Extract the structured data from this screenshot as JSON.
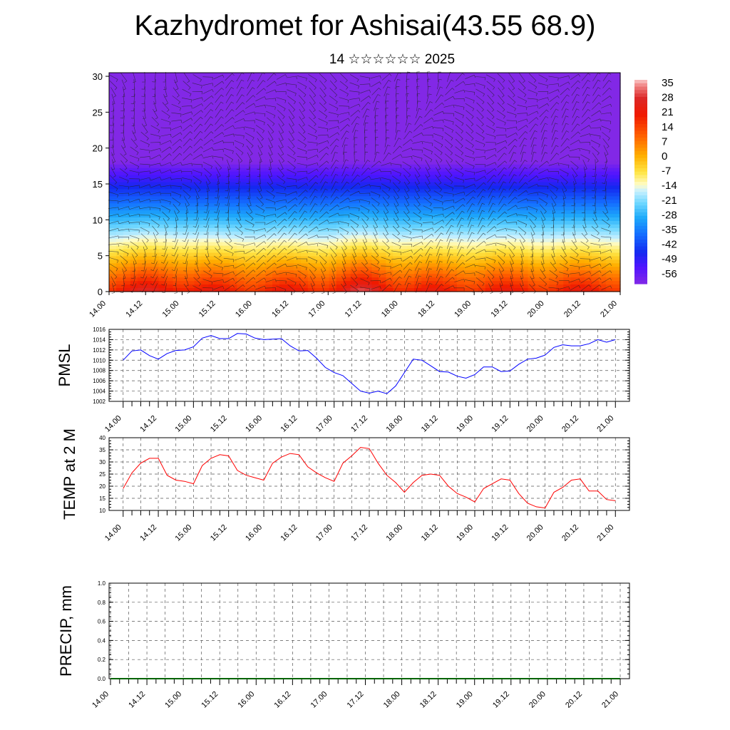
{
  "header": {
    "title": "Kazhydromet for Ashisai(43.55 68.9)",
    "subtitle": "14 ☆☆☆☆☆☆ 2025"
  },
  "x_ticks": [
    "14.00",
    "14.12",
    "15.00",
    "15.12",
    "16.00",
    "16.12",
    "17.00",
    "17.12",
    "18.00",
    "18.12",
    "19.00",
    "19.12",
    "20.00",
    "20.12",
    "21.00"
  ],
  "colors": {
    "pmsl_line": "#0000ff",
    "temp_line": "#ff0000",
    "precip_line": "#006400"
  },
  "chart_data": [
    {
      "type": "heatmap",
      "title": "",
      "xlabel": "",
      "ylabel": "",
      "ylim": [
        0,
        30.5
      ],
      "y_ticks": [
        0,
        5,
        10,
        15,
        20,
        25,
        30
      ],
      "colorbar_labels": [
        "35",
        "28",
        "21",
        "14",
        "7",
        "0",
        "-7",
        "-14",
        "-21",
        "-28",
        "-35",
        "-42",
        "-49",
        "-56"
      ],
      "colorbar_range": [
        -60,
        39
      ],
      "overlay": "wind barbs",
      "notes_free": true
    },
    {
      "type": "line",
      "ylabel": "PMSL",
      "ylim": [
        1002,
        1016
      ],
      "y_ticks": [
        1002,
        1004,
        1006,
        1008,
        1010,
        1012,
        1014,
        1016
      ],
      "x_range": [
        -0.2,
        7.2
      ],
      "series": [
        {
          "values": [
            1010.0,
            1011.8,
            1012.0,
            1010.9,
            1010.2,
            1011.3,
            1011.9,
            1012.0,
            1012.6,
            1014.3,
            1014.8,
            1014.2,
            1014.2,
            1015.2,
            1015.1,
            1014.3,
            1014.0,
            1014.1,
            1014.2,
            1012.8,
            1011.8,
            1011.9,
            1010.4,
            1008.6,
            1007.6,
            1007.0,
            1005.5,
            1004.0,
            1003.6,
            1004.0,
            1003.5,
            1005.0,
            1007.6,
            1010.2,
            1010.0,
            1008.9,
            1007.8,
            1007.7,
            1006.9,
            1006.5,
            1007.2,
            1008.7,
            1008.7,
            1007.8,
            1007.9,
            1009.2,
            1010.2,
            1010.4,
            1011.0,
            1012.5,
            1013.0,
            1012.8,
            1012.8,
            1013.2,
            1014.0,
            1013.5,
            1014.0
          ]
        }
      ]
    },
    {
      "type": "line",
      "ylabel": "TEMP at 2 M",
      "ylim": [
        10,
        40
      ],
      "y_ticks": [
        10,
        15,
        20,
        25,
        30,
        35,
        40
      ],
      "x_range": [
        -0.2,
        7.2
      ],
      "series": [
        {
          "values": [
            19.0,
            25.5,
            29.5,
            31.5,
            31.5,
            24.5,
            22.5,
            22.0,
            21.0,
            28.5,
            31.5,
            33.0,
            32.5,
            26.5,
            24.5,
            23.5,
            22.5,
            29.5,
            32.0,
            33.5,
            33.0,
            28.0,
            25.5,
            23.5,
            22.0,
            29.5,
            32.5,
            36.0,
            35.5,
            29.5,
            24.5,
            21.5,
            17.5,
            21.5,
            24.5,
            25.0,
            24.5,
            20.0,
            17.0,
            15.5,
            13.5,
            19.0,
            21.0,
            23.0,
            22.5,
            17.0,
            13.0,
            11.5,
            11.0,
            17.5,
            19.5,
            22.5,
            23.0,
            18.0,
            18.0,
            14.5,
            14.0
          ]
        }
      ]
    },
    {
      "type": "line",
      "ylabel": "PRECIP, mm",
      "ylim": [
        0,
        1.0
      ],
      "y_ticks": [
        "0.0",
        "0.2",
        "0.4",
        "0.6",
        "0.8",
        "1.0"
      ],
      "x_range": [
        -0.2,
        7.2
      ],
      "series": [
        {
          "values": [
            0,
            0,
            0,
            0,
            0,
            0,
            0,
            0,
            0,
            0,
            0,
            0,
            0,
            0,
            0,
            0,
            0,
            0,
            0,
            0,
            0,
            0,
            0,
            0,
            0,
            0,
            0,
            0,
            0,
            0,
            0,
            0,
            0,
            0,
            0,
            0,
            0,
            0,
            0,
            0,
            0,
            0,
            0,
            0,
            0,
            0,
            0,
            0,
            0,
            0,
            0,
            0,
            0,
            0,
            0,
            0,
            0
          ]
        }
      ]
    }
  ]
}
